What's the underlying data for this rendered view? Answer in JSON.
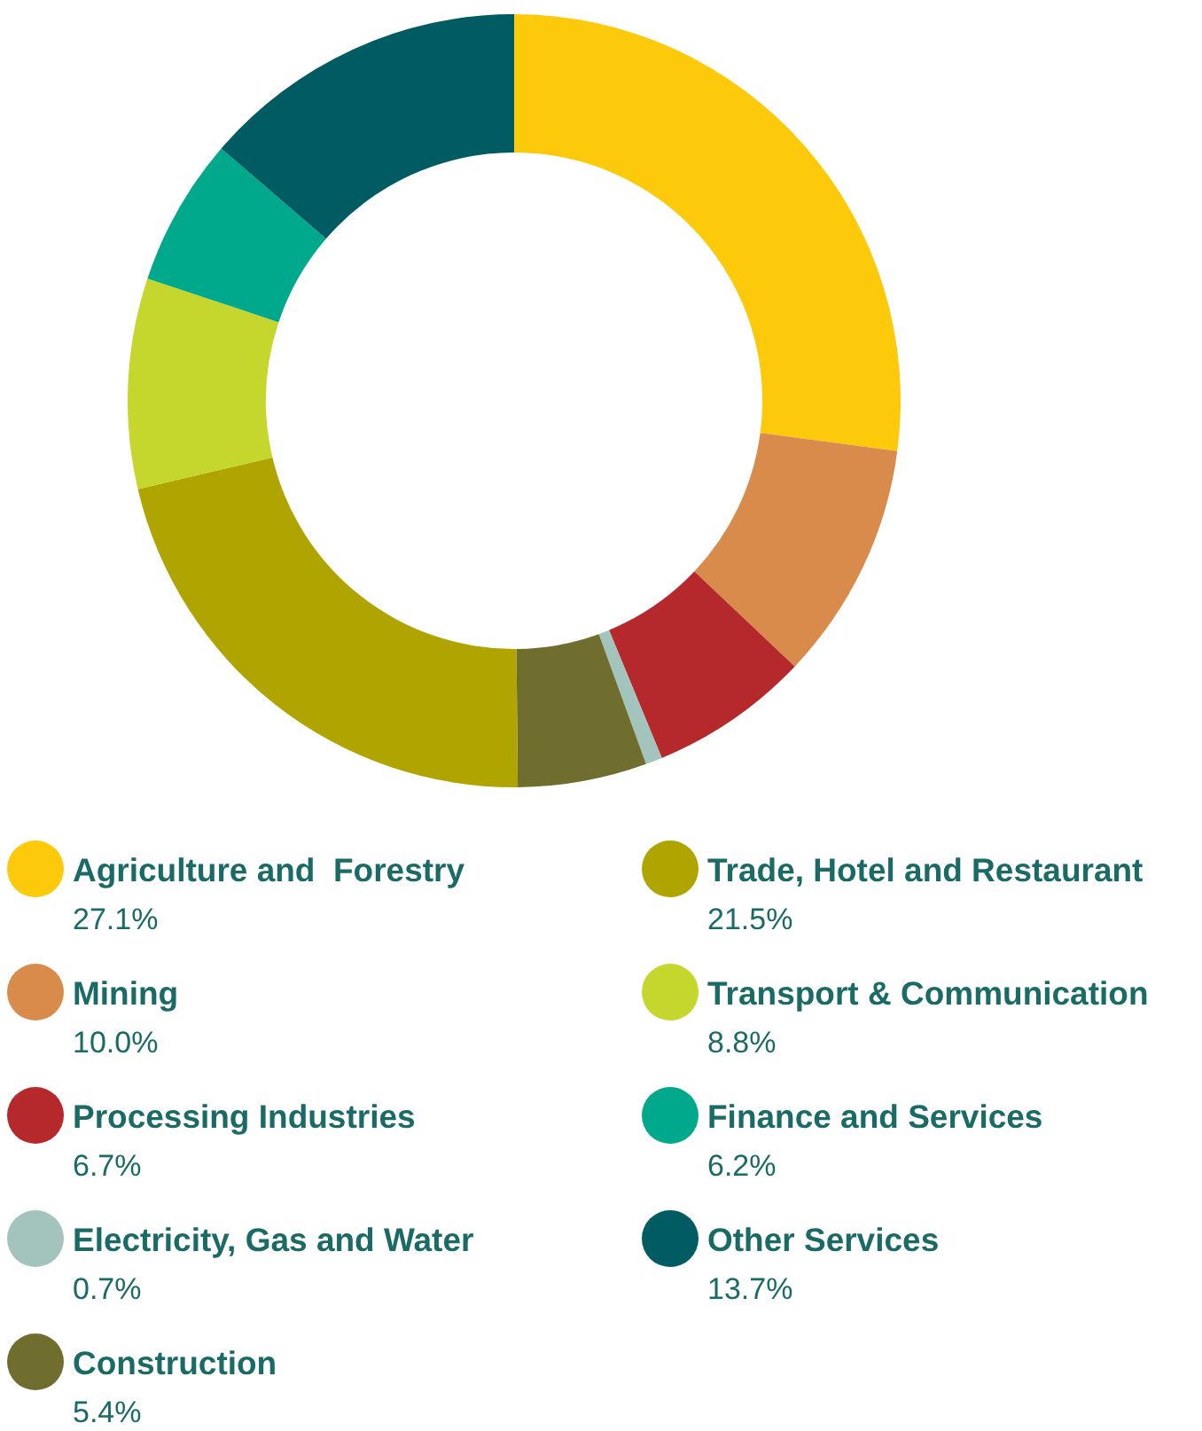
{
  "chart_data": {
    "type": "donut",
    "categories": [
      "Agriculture and  Forestry",
      "Mining",
      "Processing Industries",
      "Electricity, Gas and Water",
      "Construction",
      "Trade, Hotel and Restaurant",
      "Transport & Communication",
      "Finance and Services",
      "Other Services"
    ],
    "values": [
      27.1,
      10.0,
      6.7,
      0.7,
      5.4,
      21.5,
      8.8,
      6.2,
      13.7
    ],
    "colors": [
      "#fcca0b",
      "#d98b4c",
      "#b5292d",
      "#a3c4bc",
      "#6f6e2e",
      "#b0a500",
      "#c5d62c",
      "#00a88c",
      "#005b63"
    ],
    "value_labels": [
      "27.1%",
      "10.0%",
      "6.7%",
      "0.7%",
      "5.4%",
      "21.5%",
      "8.8%",
      "6.2%",
      "13.7%"
    ],
    "legend": "bottom"
  }
}
